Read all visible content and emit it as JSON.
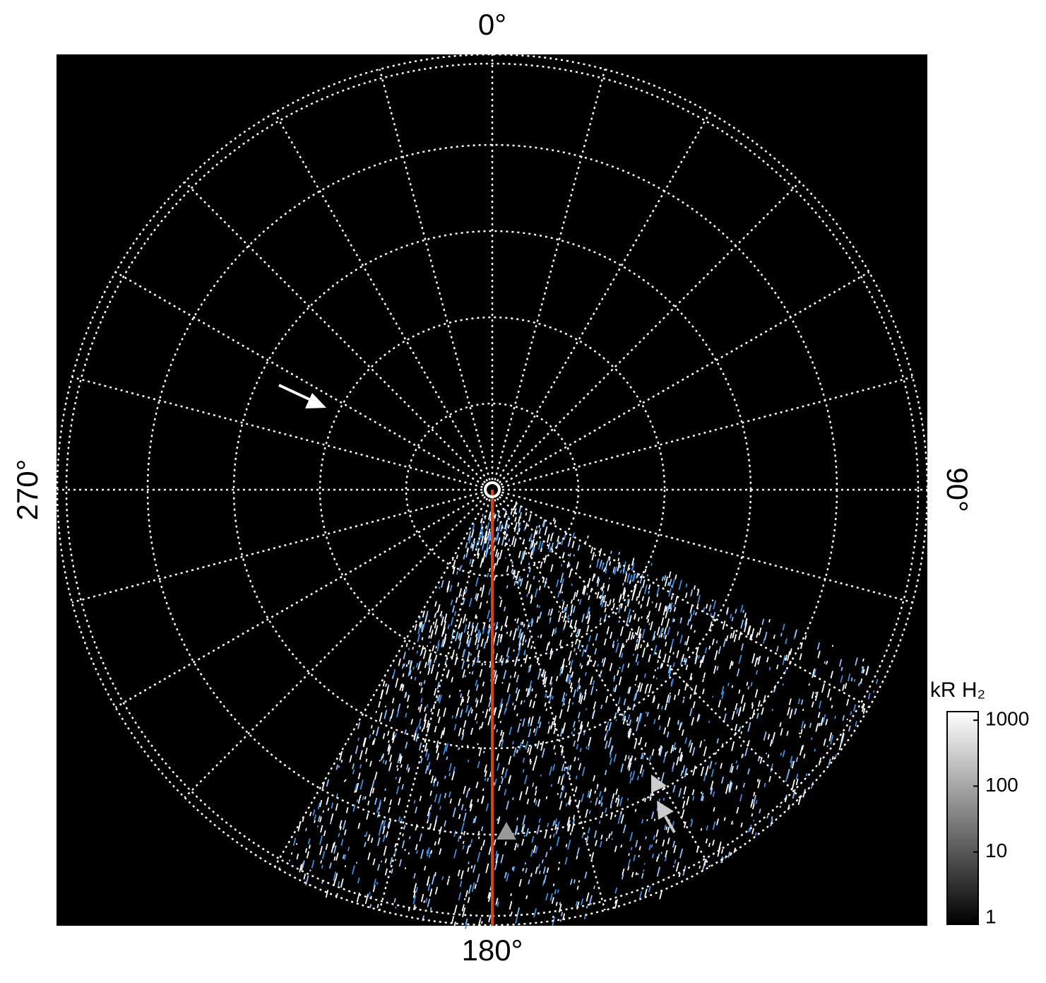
{
  "chart_data": {
    "type": "polar-image",
    "angle_ticks": [
      {
        "value": 0,
        "label": "0°"
      },
      {
        "value": 90,
        "label": "90°"
      },
      {
        "value": 180,
        "label": "180°"
      },
      {
        "value": 270,
        "label": "270°"
      }
    ],
    "grid": true,
    "colorbar": {
      "label": "kR H₂",
      "log": true,
      "lim": [
        0.8,
        1350
      ],
      "ticks": [
        1,
        10,
        100,
        1000
      ]
    }
  }
}
